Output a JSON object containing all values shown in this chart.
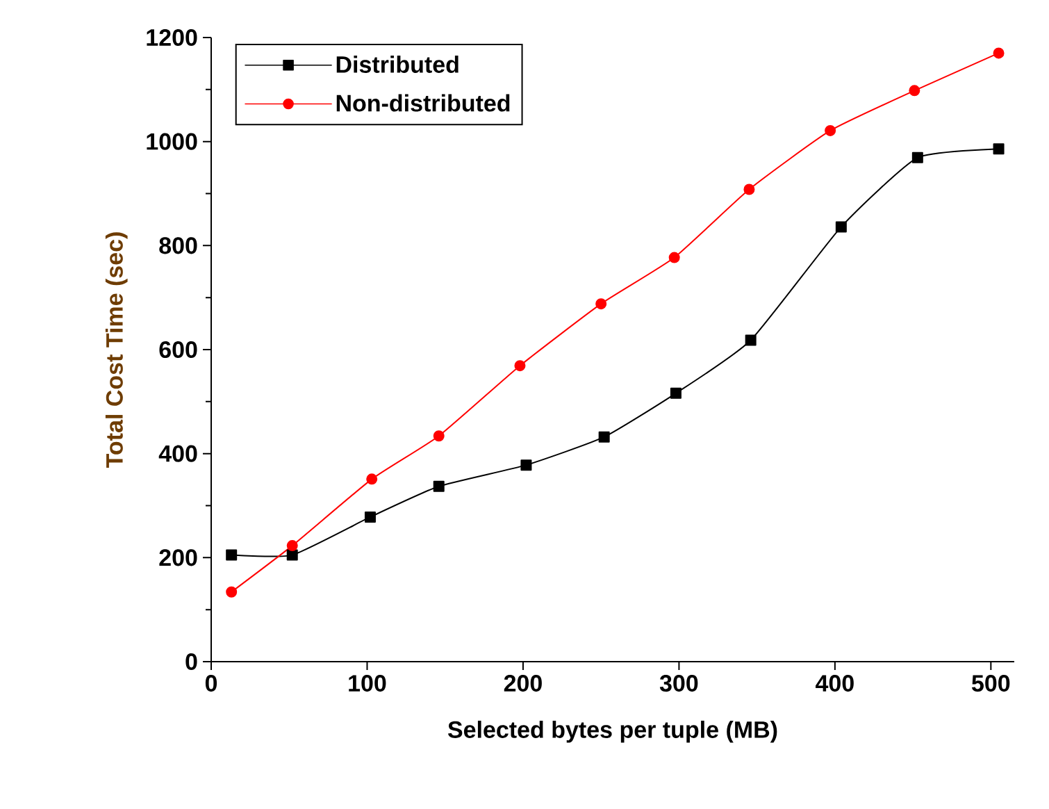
{
  "chart_data": {
    "type": "line",
    "xlabel": "Selected bytes per tuple (MB)",
    "ylabel": "Total Cost Time (sec)",
    "xlim": [
      0,
      515
    ],
    "ylim": [
      0,
      1200
    ],
    "xticks": [
      0,
      100,
      200,
      300,
      400,
      500
    ],
    "yticks": [
      0,
      200,
      400,
      600,
      800,
      1000,
      1200
    ],
    "legend": "top left",
    "grid": false,
    "series": [
      {
        "name": "Distributed",
        "color": "#000000",
        "marker": "square",
        "x": [
          13,
          52,
          102,
          146,
          202,
          252,
          298,
          346,
          404,
          453,
          505
        ],
        "values": [
          205,
          205,
          278,
          337,
          378,
          432,
          516,
          618,
          836,
          969,
          986
        ]
      },
      {
        "name": "Non-distributed",
        "color": "#ff0000",
        "marker": "circle",
        "x": [
          13,
          52,
          103,
          146,
          198,
          250,
          297,
          345,
          397,
          451,
          505
        ],
        "values": [
          134,
          223,
          351,
          434,
          569,
          688,
          777,
          908,
          1021,
          1098,
          1170
        ]
      }
    ]
  }
}
